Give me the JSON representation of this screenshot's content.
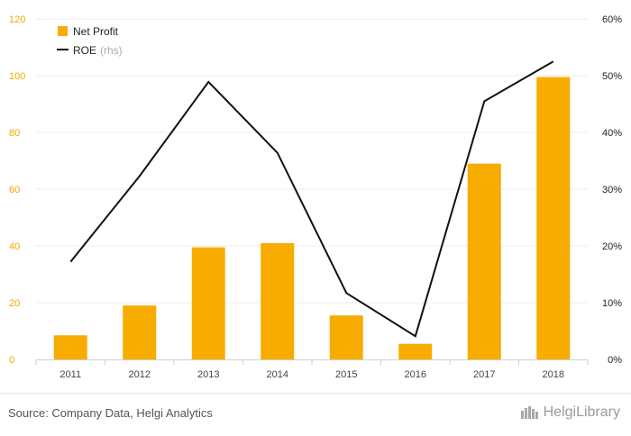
{
  "chart_data": {
    "type": "bar",
    "categories": [
      "2011",
      "2012",
      "2013",
      "2014",
      "2015",
      "2016",
      "2017",
      "2018"
    ],
    "series": [
      {
        "name": "Net Profit",
        "type": "bar",
        "axis": "left",
        "color": "#f7ac00",
        "values": [
          8.5,
          19,
          39.5,
          41,
          15.5,
          5.5,
          69,
          99.5
        ]
      },
      {
        "name": "ROE",
        "name_suffix": "(rhs)",
        "type": "line",
        "axis": "right",
        "color": "#111111",
        "values": [
          17.2,
          32.3,
          48.9,
          36.4,
          11.7,
          4.1,
          45.5,
          52.5
        ]
      }
    ],
    "y_left": {
      "ticks": [
        "0",
        "20",
        "40",
        "60",
        "80",
        "100",
        "120"
      ],
      "range": [
        0,
        120
      ]
    },
    "y_right": {
      "ticks": [
        "0%",
        "10%",
        "20%",
        "30%",
        "40%",
        "50%",
        "60%"
      ],
      "range": [
        0,
        60
      ]
    },
    "grid": true,
    "legend_position": "top-left"
  },
  "footer": {
    "source": "Source: Company Data, Helgi Analytics",
    "logo_text": "HelgiLibrary",
    "logo_icon": "building-icon"
  }
}
